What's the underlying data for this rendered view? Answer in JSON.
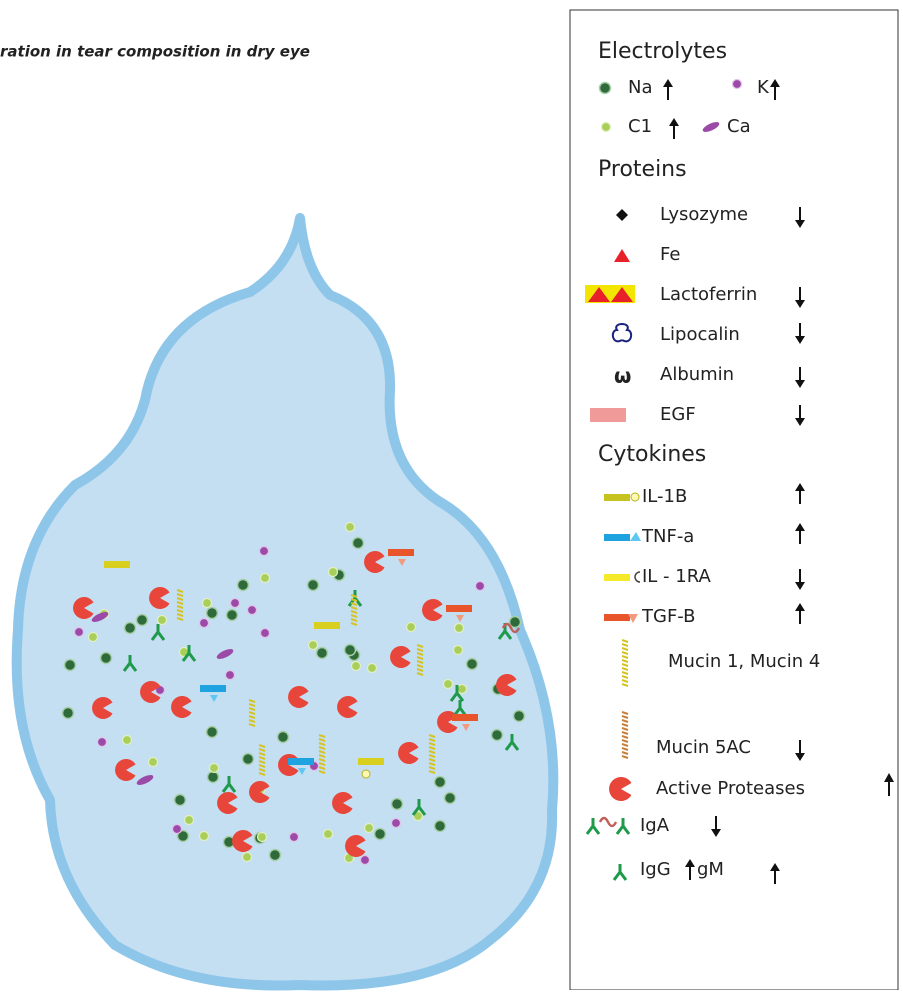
{
  "title": "ration in tear composition in dry eye",
  "legend": {
    "sections": [
      {
        "heading": "Electrolytes",
        "items": [
          {
            "label": "Na"
          },
          {
            "label": "K"
          },
          {
            "label": "C1"
          },
          {
            "label": "Ca"
          }
        ]
      },
      {
        "heading": "Proteins",
        "items": [
          {
            "label": "Lysozyme"
          },
          {
            "label": "Fe"
          },
          {
            "label": "Lactoferrin"
          },
          {
            "label": "Lipocalin"
          },
          {
            "label": "Albumin"
          },
          {
            "label": "EGF"
          }
        ]
      },
      {
        "heading": "Cytokines",
        "items": [
          {
            "label": "IL-1B"
          },
          {
            "label": "TNF-a"
          },
          {
            "label": "IL - 1RA"
          },
          {
            "label": "TGF-B"
          },
          {
            "label": "Mucin 1, Mucin 4"
          },
          {
            "label": "Mucin 5AC"
          },
          {
            "label": "Active Proteases"
          },
          {
            "label": "IgA"
          },
          {
            "label": "IgG"
          },
          {
            "label": "gM"
          }
        ]
      }
    ]
  }
}
